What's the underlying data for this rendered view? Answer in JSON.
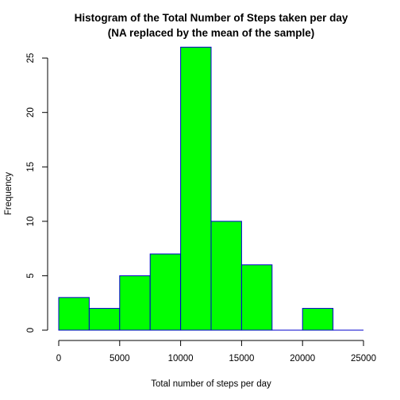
{
  "chart_data": {
    "type": "bar",
    "title": "Histogram of the Total Number of Steps taken per day",
    "subtitle": "(NA replaced by the mean of the sample)",
    "xlabel": "Total number of steps per day",
    "ylabel": "Frequency",
    "bins": [
      {
        "start": 0,
        "end": 2500,
        "value": 3
      },
      {
        "start": 2500,
        "end": 5000,
        "value": 2
      },
      {
        "start": 5000,
        "end": 7500,
        "value": 5
      },
      {
        "start": 7500,
        "end": 10000,
        "value": 7
      },
      {
        "start": 10000,
        "end": 12500,
        "value": 26
      },
      {
        "start": 12500,
        "end": 15000,
        "value": 10
      },
      {
        "start": 15000,
        "end": 17500,
        "value": 6
      },
      {
        "start": 17500,
        "end": 20000,
        "value": 0
      },
      {
        "start": 20000,
        "end": 22500,
        "value": 2
      },
      {
        "start": 22500,
        "end": 25000,
        "value": 0
      }
    ],
    "xlim": [
      0,
      25000
    ],
    "ylim": [
      0,
      26
    ],
    "xticks": [
      "0",
      "5000",
      "10000",
      "15000",
      "20000",
      "25000"
    ],
    "yticks": [
      "0",
      "5",
      "10",
      "15",
      "20",
      "25"
    ],
    "grid": false,
    "colors": {
      "fill": "#00ff00",
      "border": "#0000cd"
    }
  }
}
